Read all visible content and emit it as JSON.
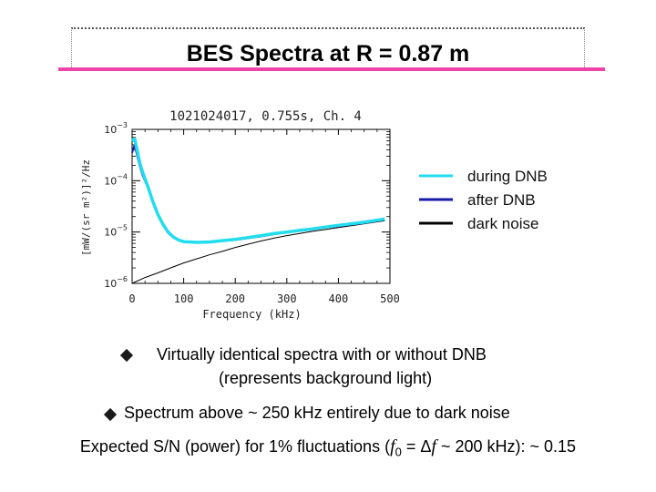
{
  "slide": {
    "title": "BES Spectra at R = 0.87 m"
  },
  "chart_data": {
    "type": "line",
    "title": "1021024017, 0.755s, Ch. 4",
    "xlabel": "Frequency (kHz)",
    "ylabel": "[mW/(sr m²)]²/Hz",
    "xlim": [
      0,
      500
    ],
    "ylim_log": [
      1e-06,
      0.001
    ],
    "y_scale": "log",
    "xticks": [
      "0",
      "100",
      "200",
      "300",
      "400",
      "500"
    ],
    "yticks": [
      {
        "base": "10",
        "exp": "−3",
        "value": 0.001
      },
      {
        "base": "10",
        "exp": "−4",
        "value": 0.0001
      },
      {
        "base": "10",
        "exp": "−5",
        "value": 1e-05
      },
      {
        "base": "10",
        "exp": "−6",
        "value": 1e-06
      }
    ],
    "series": [
      {
        "name": "during DNB",
        "color": "#22ddee",
        "x": [
          0,
          5,
          10,
          15,
          20,
          30,
          40,
          50,
          60,
          70,
          80,
          90,
          100,
          125,
          150,
          175,
          200,
          225,
          250,
          275,
          300,
          325,
          350,
          375,
          400,
          425,
          450,
          475,
          490
        ],
        "y": [
          0.0006,
          0.00065,
          0.00038,
          0.00022,
          0.00015,
          8e-05,
          4e-05,
          2.2e-05,
          1.4e-05,
          1e-05,
          8e-06,
          7e-06,
          6.5e-06,
          6.3e-06,
          6.4e-06,
          6.8e-06,
          7.2e-06,
          7.8e-06,
          8.5e-06,
          9.3e-06,
          1e-05,
          1.08e-05,
          1.15e-05,
          1.25e-05,
          1.35e-05,
          1.45e-05,
          1.55e-05,
          1.7e-05,
          1.8e-05
        ]
      },
      {
        "name": "after DNB",
        "color": "#1a1aaa",
        "x": [
          0,
          5,
          10,
          15,
          20,
          30,
          40,
          50,
          60,
          70,
          80,
          90,
          100,
          125,
          150,
          175,
          200,
          225,
          250,
          275,
          300,
          325,
          350,
          375,
          400,
          425,
          450,
          475,
          490
        ],
        "y": [
          0.00035,
          0.0005,
          0.0003,
          0.00019,
          0.00013,
          7.5e-05,
          3.8e-05,
          2.1e-05,
          1.35e-05,
          9.5e-06,
          7.8e-06,
          6.9e-06,
          6.4e-06,
          6.2e-06,
          6.3e-06,
          6.7e-06,
          7e-06,
          7.6e-06,
          8.2e-06,
          9e-06,
          9.8e-06,
          1.05e-05,
          1.12e-05,
          1.22e-05,
          1.3e-05,
          1.4e-05,
          1.5e-05,
          1.65e-05,
          1.75e-05
        ]
      },
      {
        "name": "dark noise",
        "color": "#000000",
        "x": [
          0,
          25,
          50,
          75,
          100,
          125,
          150,
          175,
          200,
          225,
          250,
          275,
          300,
          325,
          350,
          375,
          400,
          425,
          450,
          475,
          490
        ],
        "y": [
          1e-06,
          1.3e-06,
          1.6e-06,
          2e-06,
          2.5e-06,
          3e-06,
          3.6e-06,
          4.2e-06,
          5e-06,
          5.8e-06,
          6.7e-06,
          7.6e-06,
          8.5e-06,
          9.4e-06,
          1.03e-05,
          1.12e-05,
          1.22e-05,
          1.33e-05,
          1.45e-05,
          1.58e-05,
          1.66e-05
        ]
      }
    ],
    "legend_placement": "right"
  },
  "bullets": [
    {
      "line1": "Virtually identical spectra with or without DNB",
      "line2": "(represents background light)"
    },
    {
      "line1": "Spectrum above ~ 250 kHz entirely due to dark noise"
    }
  ],
  "footer": {
    "pre": "Expected S/N (power) for 1% fluctuations (",
    "f": "f",
    "sub": "0",
    "eq": " = ",
    "delta": "Δ",
    "f2": "f",
    "post": " ~ 200 kHz): ~ 0.15"
  }
}
